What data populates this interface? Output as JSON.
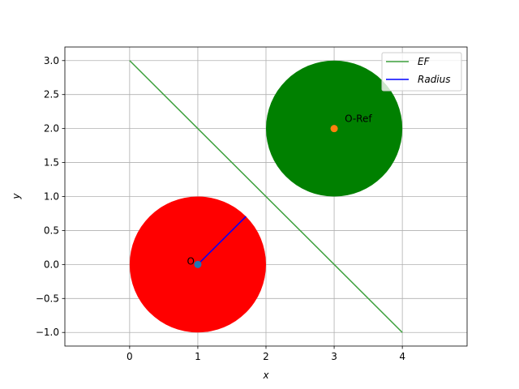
{
  "chart_data": {
    "type": "scatter",
    "xlabel": "x",
    "ylabel": "y",
    "xlim": [
      -0.95,
      4.95
    ],
    "ylim": [
      -1.2,
      3.2
    ],
    "xticks": [
      0,
      1,
      2,
      3,
      4
    ],
    "xtick_labels": [
      "0",
      "1",
      "2",
      "3",
      "4"
    ],
    "yticks": [
      -1.0,
      -0.5,
      0.0,
      0.5,
      1.0,
      1.5,
      2.0,
      2.5,
      3.0
    ],
    "ytick_labels": [
      "−1.0",
      "−0.5",
      "0.0",
      "0.5",
      "1.0",
      "1.5",
      "2.0",
      "2.5",
      "3.0"
    ],
    "grid": true,
    "legend_position": "top-right",
    "circles": [
      {
        "center": [
          1,
          0
        ],
        "r": 1,
        "color": "#ff0000"
      },
      {
        "center": [
          3,
          2
        ],
        "r": 1,
        "color": "#008000"
      }
    ],
    "series": [
      {
        "name": "EF",
        "type": "line",
        "color": "#3ca03c",
        "points": [
          [
            0,
            3
          ],
          [
            4,
            -1
          ]
        ]
      },
      {
        "name": "Radius",
        "type": "line",
        "color": "#0000ff",
        "points": [
          [
            1,
            0
          ],
          [
            1.707,
            0.707
          ]
        ]
      }
    ],
    "points": [
      {
        "label": "O",
        "x": 1,
        "y": 0,
        "color": "#1f77b4"
      },
      {
        "label": "O-Ref",
        "x": 3,
        "y": 2,
        "color": "#ff7f0e"
      }
    ],
    "legend": [
      {
        "label": "EF",
        "color": "#3ca03c"
      },
      {
        "label": "Radius",
        "color": "#0000ff"
      }
    ]
  }
}
